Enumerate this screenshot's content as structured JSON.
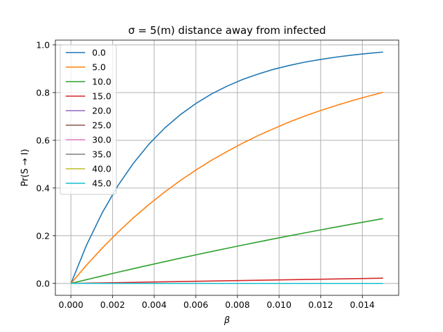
{
  "chart_data": {
    "type": "line",
    "title": "σ =  5(m) distance away from infected",
    "xlabel": "β",
    "ylabel": "Pr(S → I)",
    "xlim": [
      -0.00075,
      0.01575
    ],
    "ylim": [
      -0.05,
      1.02
    ],
    "x_ticks": [
      "0.000",
      "0.002",
      "0.004",
      "0.006",
      "0.008",
      "0.010",
      "0.012",
      "0.014"
    ],
    "y_ticks": [
      "0.0",
      "0.2",
      "0.4",
      "0.6",
      "0.8",
      "1.0"
    ],
    "grid": true,
    "legend_position": "upper left",
    "x": [
      0,
      0.00075,
      0.0015,
      0.00225,
      0.003,
      0.00375,
      0.0045,
      0.00525,
      0.006,
      0.00675,
      0.0075,
      0.00825,
      0.009,
      0.00975,
      0.0105,
      0.01125,
      0.012,
      0.01275,
      0.0135,
      0.01425,
      0.015
    ],
    "series": [
      {
        "name": "0.0",
        "color": "#1f77b4",
        "values": [
          0,
          0.161,
          0.296,
          0.409,
          0.504,
          0.584,
          0.651,
          0.707,
          0.754,
          0.794,
          0.827,
          0.855,
          0.878,
          0.898,
          0.914,
          0.928,
          0.939,
          0.949,
          0.957,
          0.964,
          0.97
        ]
      },
      {
        "name": "5.0",
        "color": "#ff7f0e",
        "values": [
          0,
          0.077,
          0.148,
          0.214,
          0.275,
          0.331,
          0.383,
          0.431,
          0.475,
          0.516,
          0.553,
          0.588,
          0.62,
          0.649,
          0.677,
          0.702,
          0.725,
          0.746,
          0.766,
          0.784,
          0.801
        ]
      },
      {
        "name": "10.0",
        "color": "#2ca02c",
        "values": [
          0,
          0.0158,
          0.0314,
          0.0467,
          0.0618,
          0.0766,
          0.0912,
          0.1056,
          0.1197,
          0.1336,
          0.1472,
          0.1606,
          0.1738,
          0.1868,
          0.1995,
          0.2121,
          0.2244,
          0.2365,
          0.2484,
          0.2601,
          0.2716
        ]
      },
      {
        "name": "15.0",
        "color": "#d62728",
        "values": [
          0,
          0.0011,
          0.0022,
          0.0033,
          0.0044,
          0.0055,
          0.0066,
          0.0077,
          0.0088,
          0.0099,
          0.011,
          0.0121,
          0.0132,
          0.0143,
          0.0154,
          0.0165,
          0.0176,
          0.0186,
          0.0197,
          0.0208,
          0.0219
        ]
      },
      {
        "name": "20.0",
        "color": "#9467bd",
        "values": [
          0,
          0,
          0,
          0,
          0,
          0,
          0,
          0,
          0,
          0,
          0,
          0,
          0,
          0,
          0,
          0,
          0,
          0,
          0,
          0,
          0
        ]
      },
      {
        "name": "25.0",
        "color": "#8c564b",
        "values": [
          0,
          0,
          0,
          0,
          0,
          0,
          0,
          0,
          0,
          0,
          0,
          0,
          0,
          0,
          0,
          0,
          0,
          0,
          0,
          0,
          0
        ]
      },
      {
        "name": "30.0",
        "color": "#e377c2",
        "values": [
          0,
          0,
          0,
          0,
          0,
          0,
          0,
          0,
          0,
          0,
          0,
          0,
          0,
          0,
          0,
          0,
          0,
          0,
          0,
          0,
          0
        ]
      },
      {
        "name": "35.0",
        "color": "#7f7f7f",
        "values": [
          0,
          0,
          0,
          0,
          0,
          0,
          0,
          0,
          0,
          0,
          0,
          0,
          0,
          0,
          0,
          0,
          0,
          0,
          0,
          0,
          0
        ]
      },
      {
        "name": "40.0",
        "color": "#bcbd22",
        "values": [
          0,
          0,
          0,
          0,
          0,
          0,
          0,
          0,
          0,
          0,
          0,
          0,
          0,
          0,
          0,
          0,
          0,
          0,
          0,
          0,
          0
        ]
      },
      {
        "name": "45.0",
        "color": "#17becf",
        "values": [
          0,
          0,
          0,
          0,
          0,
          0,
          0,
          0,
          0,
          0,
          0,
          0,
          0,
          0,
          0,
          0,
          0,
          0,
          0,
          0,
          0
        ]
      }
    ]
  }
}
